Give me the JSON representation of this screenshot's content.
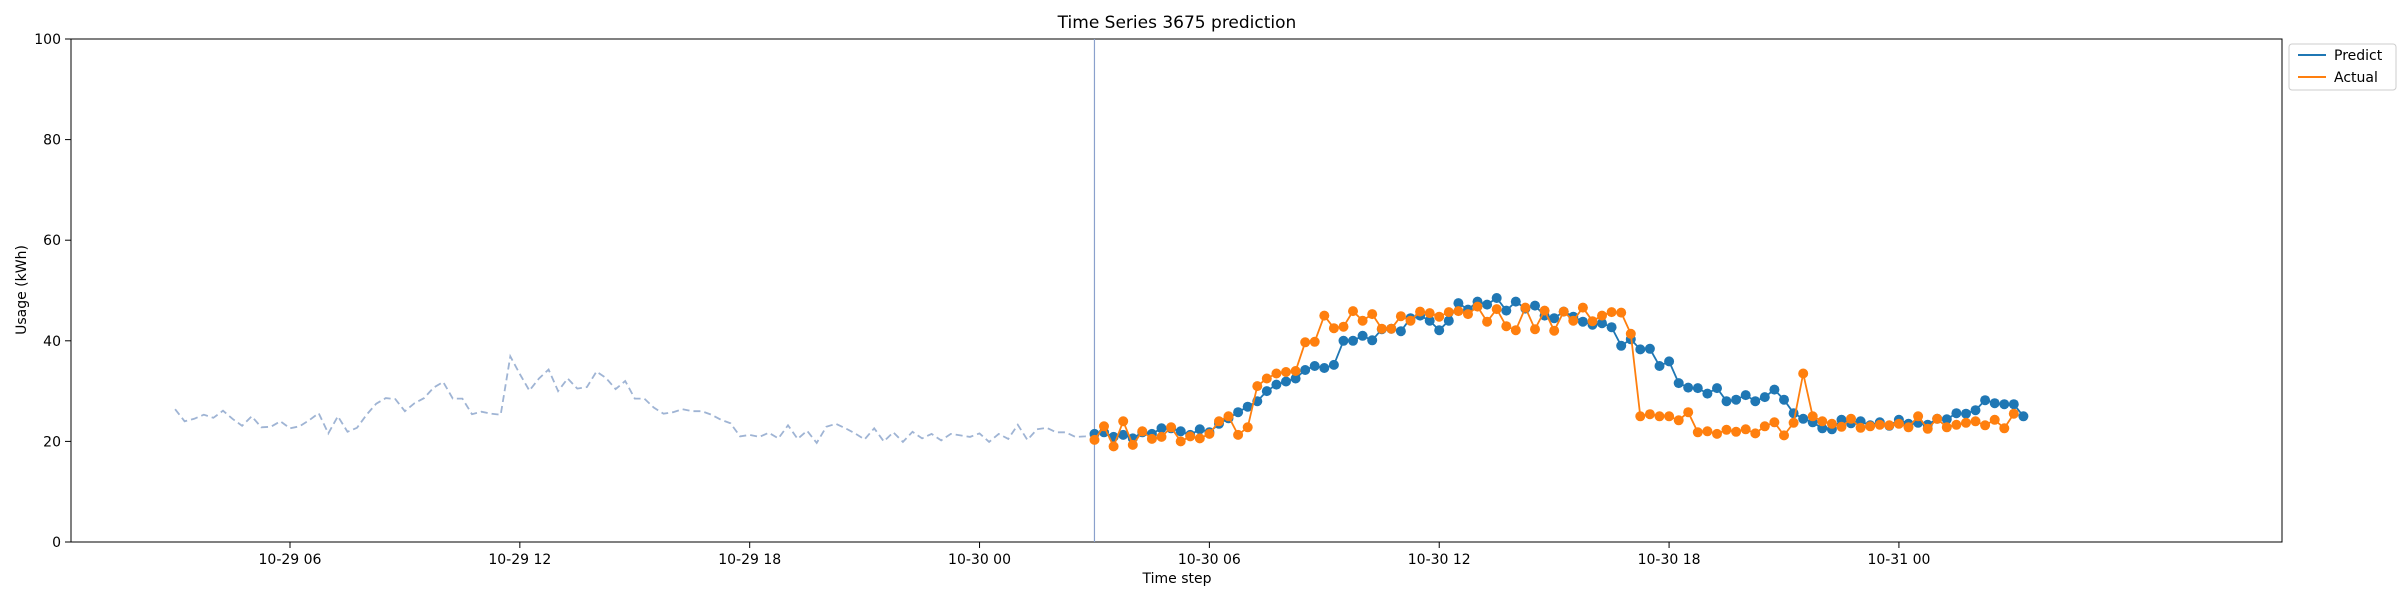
{
  "chart_data": {
    "type": "line",
    "title": "Time Series 3675 prediction",
    "xlabel": "Time step",
    "ylabel": "Usage (kWh)",
    "ylim": [
      0,
      100
    ],
    "xlim": [
      "10-29 00:17",
      "10-31 10:00"
    ],
    "yticks": [
      0,
      20,
      40,
      60,
      80,
      100
    ],
    "xticks": [
      {
        "value": "10-29 06:00",
        "label": "10-29 06"
      },
      {
        "value": "10-29 12:00",
        "label": "10-29 12"
      },
      {
        "value": "10-29 18:00",
        "label": "10-29 18"
      },
      {
        "value": "10-30 00:00",
        "label": "10-30 00"
      },
      {
        "value": "10-30 06:00",
        "label": "10-30 06"
      },
      {
        "value": "10-30 12:00",
        "label": "10-30 12"
      },
      {
        "value": "10-30 18:00",
        "label": "10-30 18"
      },
      {
        "value": "10-31 00:00",
        "label": "10-31 00"
      }
    ],
    "grid": false,
    "legend_position": "outside-top-right",
    "forecast_start": "10-30 03:00",
    "x_step_minutes": 15,
    "history": {
      "start": "10-29 03:00",
      "color": "#9fb4d4",
      "style": "dashed",
      "values": [
        26.4,
        24.0,
        24.5,
        25.3,
        24.7,
        26.1,
        24.5,
        23.1,
        25.0,
        22.8,
        22.9,
        24.0,
        22.6,
        23.0,
        24.2,
        25.6,
        21.6,
        25.0,
        21.9,
        22.7,
        25.3,
        27.5,
        28.6,
        28.4,
        26.0,
        27.6,
        28.6,
        30.7,
        31.8,
        28.5,
        28.5,
        25.4,
        25.9,
        25.5,
        25.3,
        36.9,
        33.4,
        30.1,
        32.5,
        34.3,
        30.0,
        32.5,
        30.5,
        30.8,
        33.9,
        32.6,
        30.4,
        32.0,
        28.5,
        28.5,
        26.7,
        25.5,
        25.8,
        26.4,
        26.0,
        26.0,
        25.3,
        24.3,
        23.6,
        21.0,
        21.3,
        20.9,
        21.7,
        20.6,
        23.2,
        20.5,
        22.1,
        19.7,
        22.9,
        23.5,
        22.6,
        21.6,
        20.4,
        22.6,
        20.0,
        21.8,
        19.9,
        21.9,
        20.6,
        21.5,
        20.2,
        21.5,
        21.2,
        20.9,
        21.6,
        19.9,
        21.5,
        20.5,
        23.3,
        20.3,
        22.4,
        22.7,
        21.8,
        21.8,
        20.9,
        21.0,
        21.2,
        21.6
      ]
    },
    "series": [
      {
        "name": "Predict",
        "color": "#1f77b4",
        "start": "10-30 03:00",
        "values": [
          21.5,
          21.8,
          20.9,
          21.3,
          20.6,
          21.8,
          21.5,
          22.6,
          22.6,
          22.0,
          21.3,
          22.4,
          21.8,
          23.5,
          24.6,
          25.8,
          26.9,
          28.0,
          30.0,
          31.3,
          31.9,
          32.5,
          34.2,
          35.0,
          34.6,
          35.2,
          40.0,
          40.0,
          41.0,
          40.1,
          42.3,
          42.4,
          41.9,
          44.5,
          45.0,
          44.0,
          42.1,
          44.0,
          47.5,
          46.2,
          47.8,
          47.2,
          48.5,
          46.0,
          47.8,
          46.4,
          47.0,
          45.0,
          44.5,
          45.8,
          44.8,
          43.8,
          43.2,
          43.5,
          42.7,
          39.0,
          40.3,
          38.3,
          38.4,
          35.0,
          35.9,
          31.6,
          30.7,
          30.6,
          29.5,
          30.6,
          28.0,
          28.3,
          29.2,
          28.0,
          28.8,
          30.3,
          28.3,
          25.6,
          24.5,
          23.8,
          22.6,
          22.4,
          24.3,
          23.6,
          24.0,
          23.2,
          23.8,
          23.1,
          24.3,
          23.5,
          23.7,
          23.3,
          24.5,
          24.4,
          25.6,
          25.5,
          26.2,
          28.2,
          27.6,
          27.4,
          27.4,
          25.0
        ]
      },
      {
        "name": "Actual",
        "color": "#ff7f0e",
        "start": "10-30 03:00",
        "values": [
          20.3,
          23.0,
          19.0,
          24.0,
          19.3,
          22.0,
          20.5,
          20.9,
          22.8,
          20.0,
          21.0,
          20.6,
          21.5,
          24.0,
          25.0,
          21.3,
          22.8,
          31.0,
          32.5,
          33.5,
          33.8,
          34.0,
          39.7,
          39.8,
          45.0,
          42.5,
          42.8,
          45.9,
          44.0,
          45.3,
          42.4,
          42.4,
          44.9,
          44.0,
          45.8,
          45.5,
          44.8,
          45.7,
          45.9,
          45.3,
          46.8,
          43.8,
          46.3,
          42.9,
          42.1,
          46.6,
          42.3,
          46.0,
          42.0,
          45.8,
          44.0,
          46.6,
          43.9,
          45.0,
          45.7,
          45.6,
          41.4,
          25.0,
          25.4,
          25.0,
          25.0,
          24.2,
          25.8,
          21.8,
          22.0,
          21.5,
          22.3,
          21.9,
          22.4,
          21.6,
          23.0,
          23.8,
          21.2,
          23.7,
          33.5,
          25.0,
          24.0,
          23.5,
          22.9,
          24.5,
          22.7,
          23.0,
          23.3,
          23.2,
          23.5,
          22.8,
          25.0,
          22.5,
          24.5,
          22.8,
          23.3,
          23.7,
          24.0,
          23.2,
          24.3,
          22.6,
          25.5
        ]
      }
    ]
  }
}
